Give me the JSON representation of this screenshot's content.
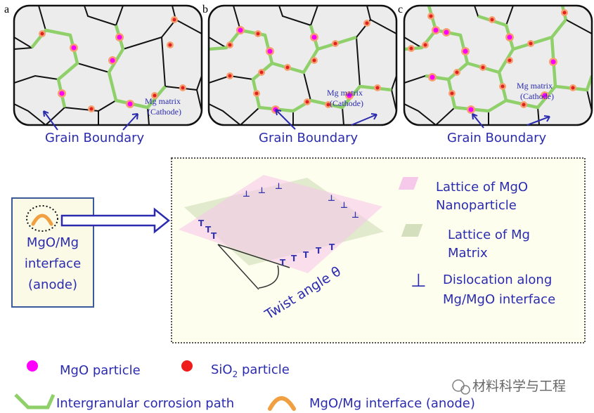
{
  "panels": [
    {
      "label": "a",
      "matrix_line1": "Mg matrix",
      "matrix_line2": "(Cathode)",
      "boundary_label": "Grain Boundary"
    },
    {
      "label": "b",
      "matrix_line1": "Mg matrix",
      "matrix_line2": "(Cathode)",
      "boundary_label": "Grain Boundary"
    },
    {
      "label": "c",
      "matrix_line1": "Mg matrix",
      "matrix_line2": "(Cathode)",
      "boundary_label": "Grain Boundary"
    }
  ],
  "interface_box": {
    "line1": "MgO/Mg",
    "line2": "interface",
    "line3": "(anode)"
  },
  "lattice_diagram": {
    "twist_label": "Twist angle θ",
    "legend": {
      "mgo_line1": "Lattice of MgO",
      "mgo_line2": "Nanoparticle",
      "mg_line1": "Lattice of Mg",
      "mg_line2": "Matrix",
      "dislocation_symbol": "⊥",
      "dis_line1": "Dislocation along",
      "dis_line2": "Mg/MgO interface"
    }
  },
  "legend": {
    "mgo": "MgO particle",
    "sio2_prefix": "SiO",
    "sio2_sub": "2",
    "sio2_suffix": " particle",
    "path": "Intergranular corrosion path",
    "anode": "MgO/Mg interface (anode)"
  },
  "watermark": "材料科学与工程",
  "colors": {
    "text_blue": "#2b2bb0",
    "mgo": "#ff00ff",
    "sio2": "#ee1c1c",
    "path": "#8fd06a",
    "anode": "#f0a040"
  }
}
